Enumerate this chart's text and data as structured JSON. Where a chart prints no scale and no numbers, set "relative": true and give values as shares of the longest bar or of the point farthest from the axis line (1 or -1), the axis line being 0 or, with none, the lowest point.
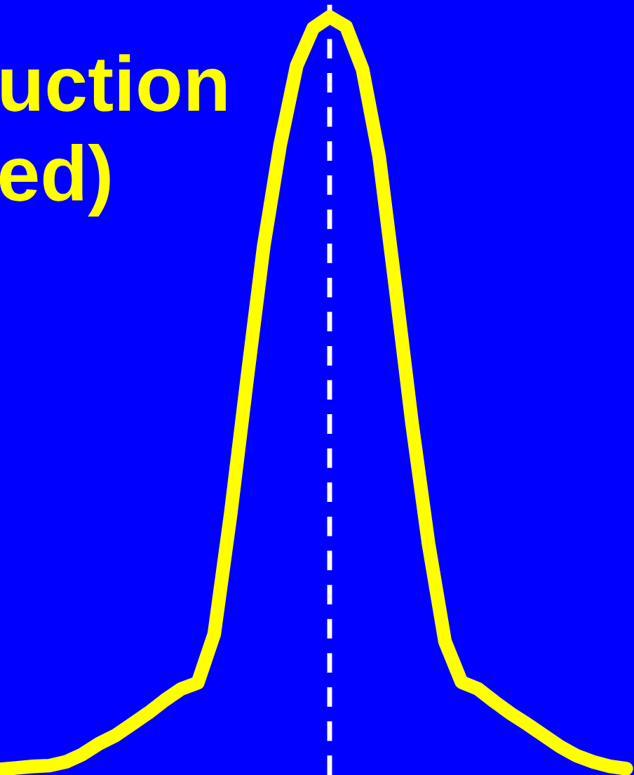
{
  "chart_data": {
    "type": "line",
    "relative": true,
    "title": "uction\ned)",
    "categories": [
      null,
      null,
      null,
      null,
      null,
      null,
      null,
      null,
      null,
      null,
      null,
      null,
      null,
      null,
      null,
      null,
      null,
      null,
      null,
      null,
      null,
      null,
      null,
      null,
      null,
      null,
      null,
      null,
      null,
      null,
      null,
      null,
      null,
      null,
      null,
      null,
      null,
      null,
      null
    ],
    "series": [
      {
        "color": "#ffff00",
        "values": [
          0,
          0.002,
          0.004,
          0.005,
          0.01,
          0.02,
          0.034,
          0.045,
          0.06,
          0.075,
          0.092,
          0.107,
          0.115,
          0.18,
          0.34,
          0.52,
          0.695,
          0.83,
          0.935,
          0.985,
          1,
          0.987,
          0.93,
          0.815,
          0.64,
          0.46,
          0.3,
          0.17,
          0.116,
          0.107,
          0.09,
          0.074,
          0.06,
          0.045,
          0.03,
          0.018,
          0.01,
          0.004,
          0.001
        ]
      }
    ],
    "marker": "none",
    "line_style": "solid"
  }
}
